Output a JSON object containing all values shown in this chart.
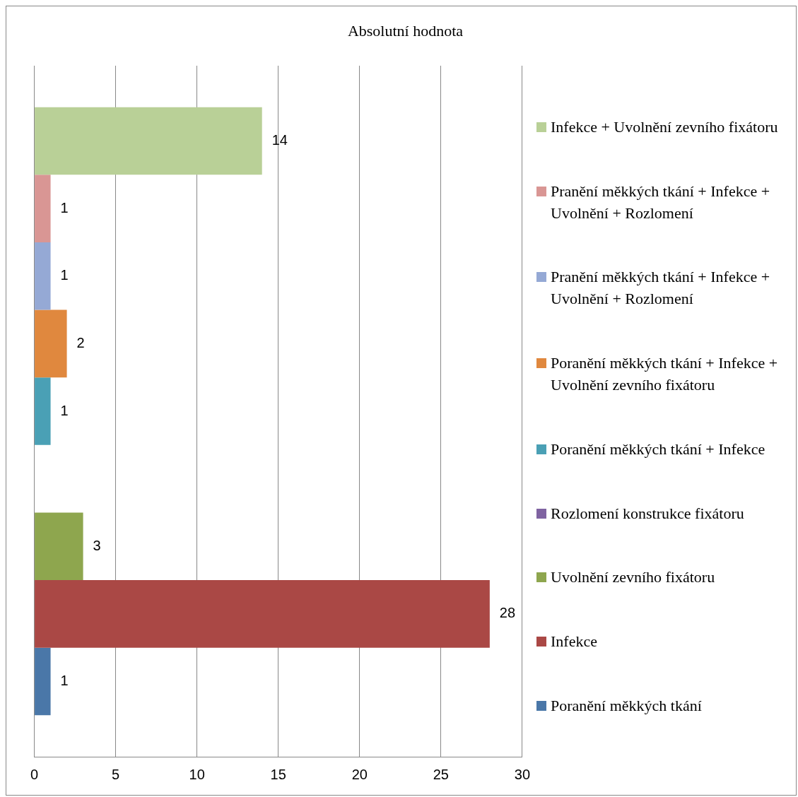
{
  "chart_data": {
    "type": "bar",
    "orientation": "horizontal",
    "title": "Absolutní hodnota",
    "categories": [
      null
    ],
    "series": [
      {
        "name": "Infekce + Uvolnění zevního fixátoru",
        "color": "#b9d097",
        "values": [
          14
        ]
      },
      {
        "name": "Pranění měkkých tkání + Infekce + Uvolnění  + Rozlomení",
        "color": "#d99694",
        "values": [
          1
        ]
      },
      {
        "name": "Pranění měkkých tkání + Infekce + Uvolnění  + Rozlomení",
        "color": "#95a9d5",
        "values": [
          1
        ]
      },
      {
        "name": "Poranění měkkých tkání + Infekce + Uvolnění zevního fixátoru",
        "color": "#e0883e",
        "values": [
          2
        ]
      },
      {
        "name": "Poranění měkkých tkání + Infekce",
        "color": "#4aa0b5",
        "values": [
          1
        ]
      },
      {
        "name": "Rozlomení konstrukce fixátoru",
        "color": "#7f63a1",
        "values": [
          null
        ]
      },
      {
        "name": "Uvolnění zevního fixátoru",
        "color": "#8ea64e",
        "values": [
          3
        ]
      },
      {
        "name": "Infekce",
        "color": "#aa4845",
        "values": [
          28
        ]
      },
      {
        "name": "Poranění měkkých tkání",
        "color": "#4a77a8",
        "values": [
          1
        ]
      }
    ],
    "xlim": [
      0,
      30
    ],
    "xticks": [
      0,
      5,
      10,
      15,
      20,
      25,
      30
    ],
    "grid": "x",
    "legend": "right",
    "tick_labels": "x",
    "data_labels": true
  }
}
